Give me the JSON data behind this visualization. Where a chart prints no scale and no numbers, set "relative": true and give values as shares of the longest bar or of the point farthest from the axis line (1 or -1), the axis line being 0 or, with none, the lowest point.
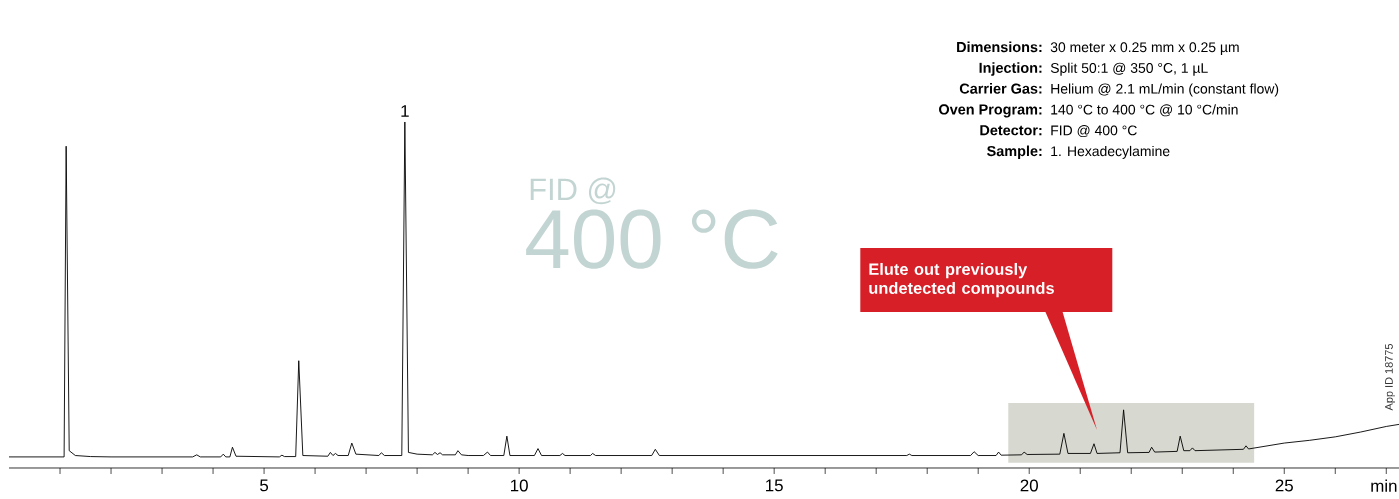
{
  "chart_data": {
    "type": "line",
    "relative": true,
    "color": "#000000",
    "xlabel": "min",
    "xlim": [
      0,
      27.25
    ],
    "xticks": [
      {
        "value": 1,
        "label": null
      },
      {
        "value": 2,
        "label": null
      },
      {
        "value": 3,
        "label": null
      },
      {
        "value": 4,
        "label": null
      },
      5,
      {
        "value": 6,
        "label": null
      },
      {
        "value": 7,
        "label": null
      },
      {
        "value": 8,
        "label": null
      },
      {
        "value": 9,
        "label": null
      },
      10,
      {
        "value": 11,
        "label": null
      },
      {
        "value": 12,
        "label": null
      },
      {
        "value": 13,
        "label": null
      },
      {
        "value": 14,
        "label": null
      },
      15,
      {
        "value": 16,
        "label": null
      },
      {
        "value": 17,
        "label": null
      },
      {
        "value": 18,
        "label": null
      },
      {
        "value": 19,
        "label": null
      },
      20,
      {
        "value": 21,
        "label": null
      },
      {
        "value": 22,
        "label": null
      },
      {
        "value": 23,
        "label": null
      },
      {
        "value": 24,
        "label": null
      },
      25,
      {
        "value": 26,
        "label": null
      },
      {
        "value": 27,
        "label": null
      }
    ],
    "x": [
      0,
      1.08,
      1.12,
      1.18,
      1.3,
      1.6,
      2.0,
      3.6,
      3.68,
      3.75,
      4.15,
      4.2,
      4.25,
      4.33,
      4.38,
      4.45,
      5.3,
      5.35,
      5.4,
      5.62,
      5.68,
      5.76,
      6.25,
      6.3,
      6.35,
      6.4,
      6.45,
      6.65,
      6.72,
      6.8,
      7.25,
      7.3,
      7.36,
      7.7,
      7.76,
      7.83,
      8.0,
      8.3,
      8.35,
      8.4,
      8.45,
      8.5,
      8.75,
      8.8,
      8.87,
      9.0,
      9.3,
      9.38,
      9.44,
      9.7,
      9.76,
      9.82,
      10.3,
      10.37,
      10.44,
      10.8,
      10.85,
      10.9,
      11.4,
      11.44,
      11.5,
      12.6,
      12.67,
      12.75,
      17.6,
      17.65,
      17.7,
      18.85,
      18.92,
      19.0,
      19.35,
      19.4,
      19.45,
      19.85,
      19.9,
      19.96,
      20.6,
      20.68,
      20.76,
      21.2,
      21.27,
      21.33,
      21.78,
      21.85,
      21.93,
      22.35,
      22.4,
      22.46,
      22.9,
      22.96,
      23.03,
      23.15,
      23.2,
      23.25,
      24.2,
      24.25,
      24.3,
      25.0,
      25.5,
      26.0,
      26.5,
      27.0,
      27.25
    ],
    "values": [
      0.032,
      0.032,
      0.93,
      0.05,
      0.036,
      0.033,
      0.032,
      0.032,
      0.038,
      0.032,
      0.032,
      0.04,
      0.032,
      0.032,
      0.06,
      0.034,
      0.032,
      0.037,
      0.033,
      0.033,
      0.31,
      0.036,
      0.034,
      0.045,
      0.036,
      0.042,
      0.036,
      0.036,
      0.072,
      0.04,
      0.036,
      0.044,
      0.036,
      0.036,
      1.0,
      0.045,
      0.04,
      0.038,
      0.045,
      0.039,
      0.044,
      0.038,
      0.038,
      0.05,
      0.038,
      0.036,
      0.036,
      0.046,
      0.036,
      0.036,
      0.092,
      0.036,
      0.036,
      0.056,
      0.036,
      0.036,
      0.042,
      0.036,
      0.036,
      0.042,
      0.036,
      0.036,
      0.054,
      0.036,
      0.036,
      0.04,
      0.036,
      0.036,
      0.047,
      0.036,
      0.036,
      0.046,
      0.037,
      0.038,
      0.046,
      0.039,
      0.04,
      0.1,
      0.042,
      0.042,
      0.07,
      0.042,
      0.044,
      0.168,
      0.044,
      0.045,
      0.06,
      0.046,
      0.048,
      0.092,
      0.05,
      0.05,
      0.058,
      0.05,
      0.054,
      0.064,
      0.055,
      0.072,
      0.08,
      0.09,
      0.104,
      0.12,
      0.126
    ],
    "bands": [
      {
        "axis": "x",
        "from": 19.59,
        "to": 24.41,
        "label": "Elute out previously undetected compounds",
        "color": "#d7d8d0"
      }
    ],
    "annotations": [
      {
        "text": "1",
        "x": 7.76,
        "y": 1.0
      },
      "FID @",
      "400 °C",
      "App ID 18775",
      "Dimensions:",
      "30 meter x 0.25 mm x 0.25 µm",
      "Injection:",
      "Split 50:1 @ 350 °C, 1 µL",
      "Carrier Gas:",
      "Helium @ 2.1 mL/min (constant flow)",
      "Oven Program:",
      "140 °C to 400 °C @ 10 °C/min",
      "Detector:",
      "FID @ 400 °C",
      "Sample:",
      "1. Hexadecylamine"
    ]
  }
}
